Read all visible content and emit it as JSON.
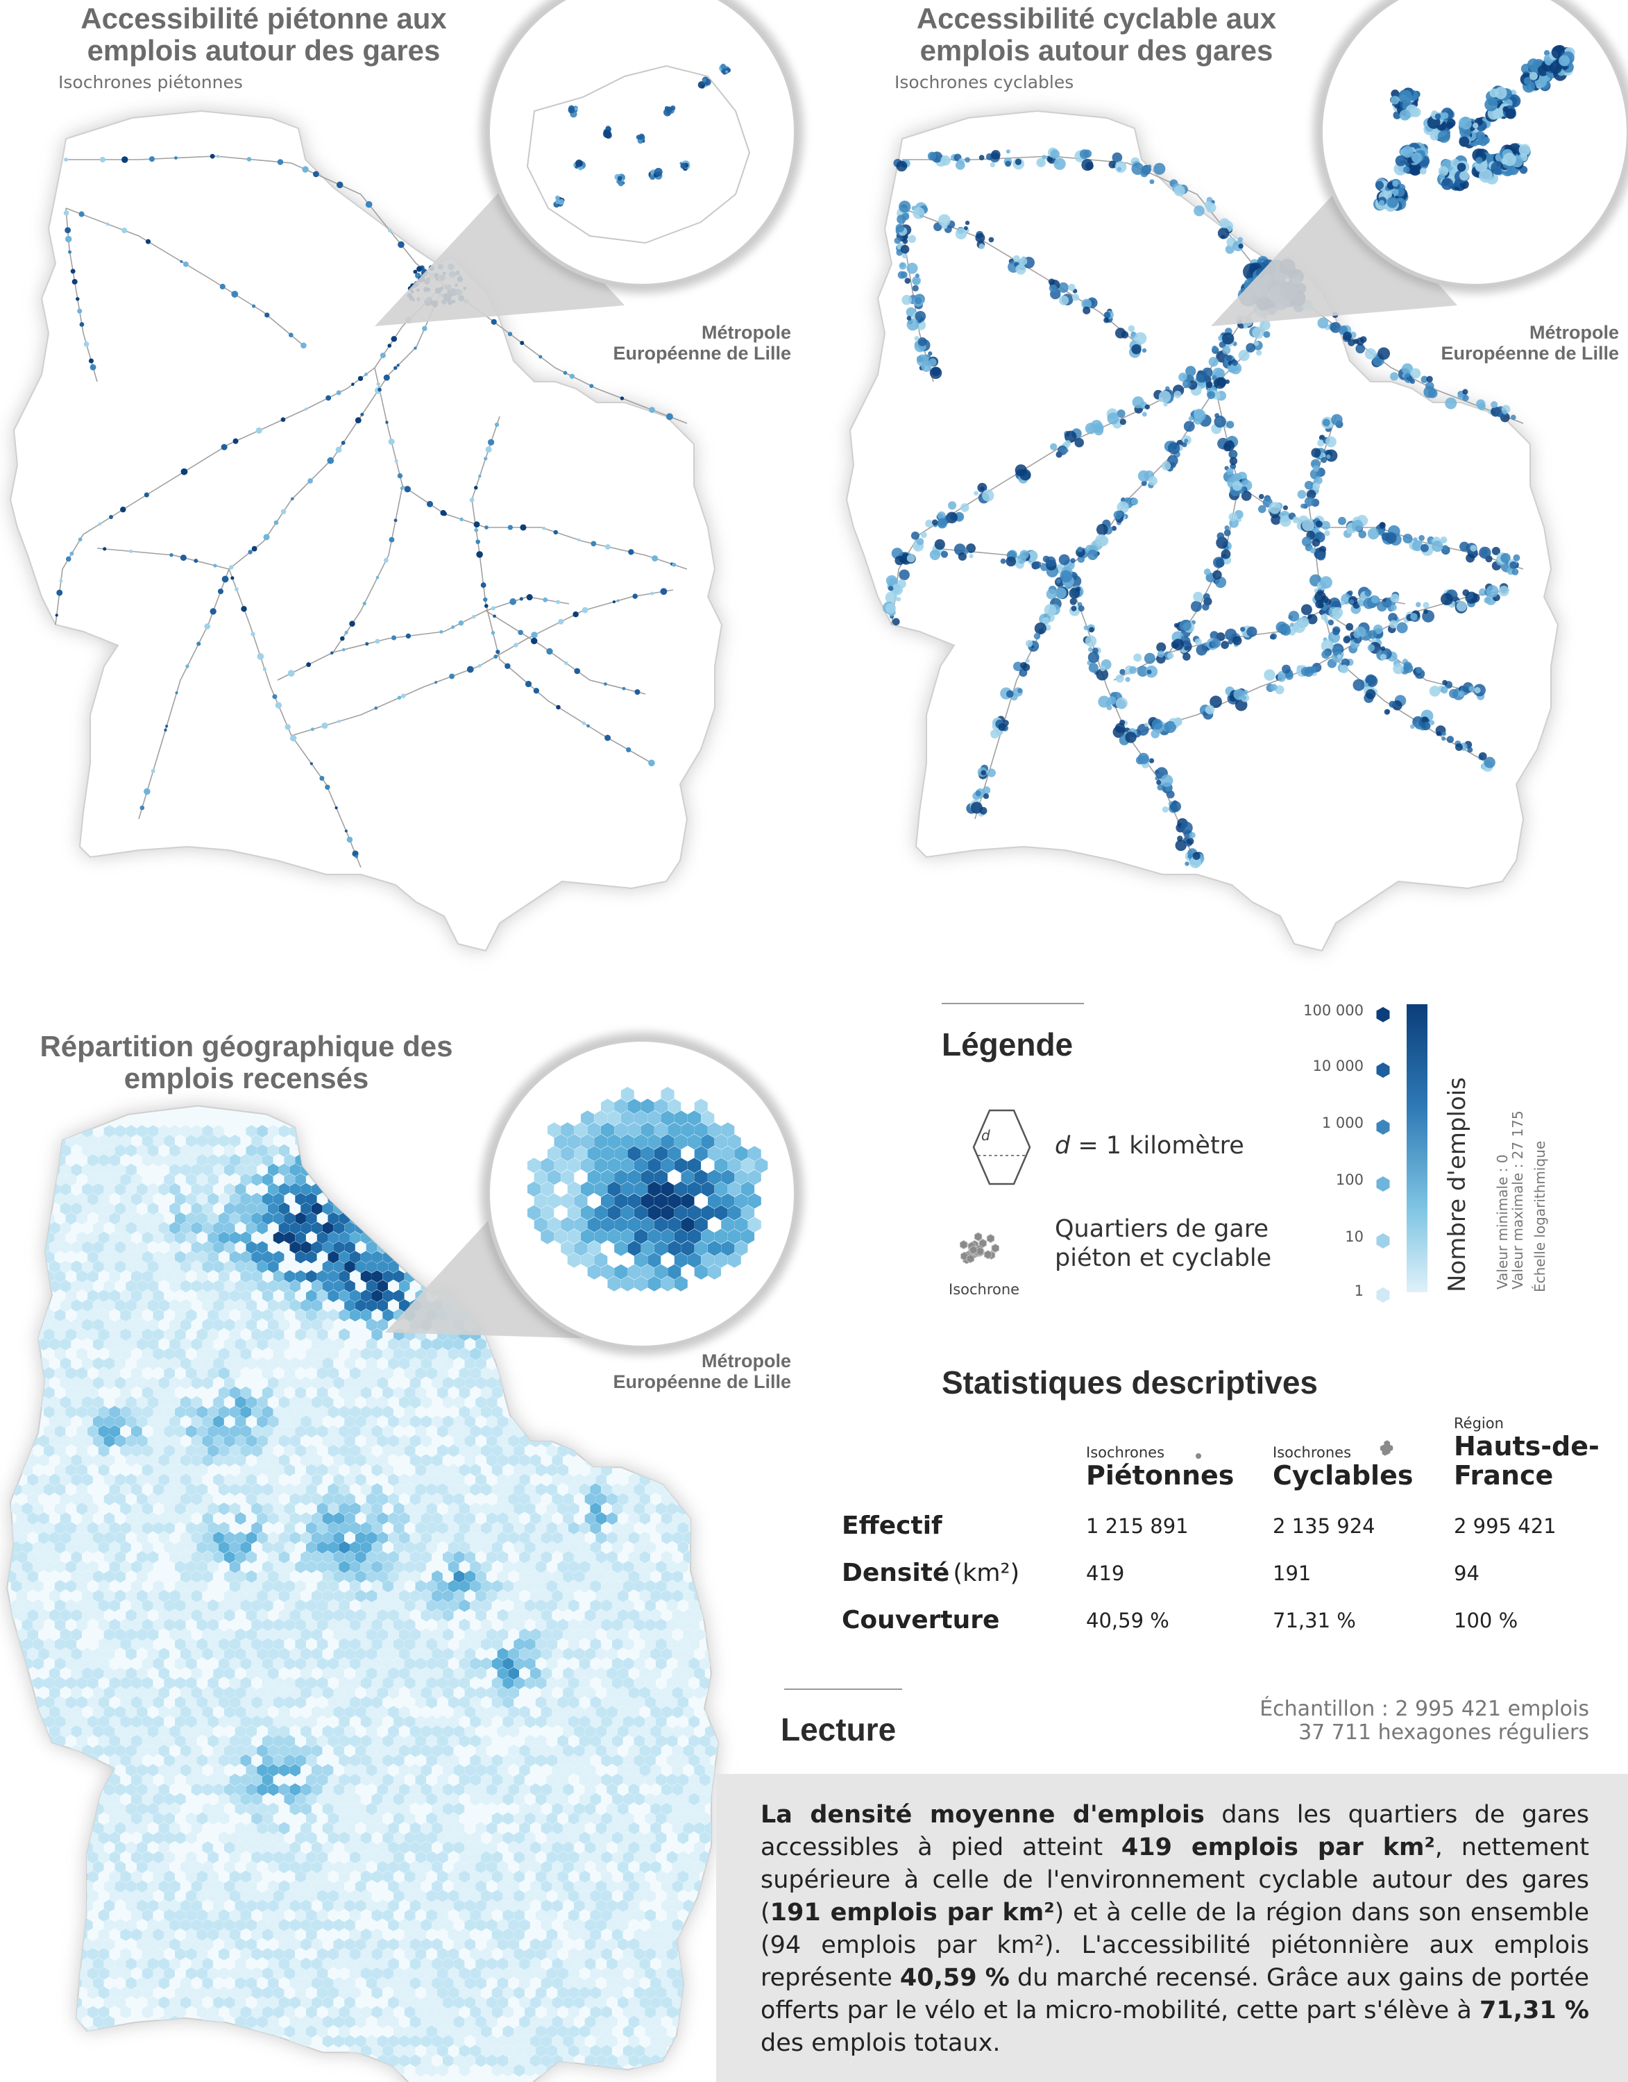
{
  "colors": {
    "title_gray": "#6b6b6b",
    "blue_dark": "#0b3e7a",
    "blue_mid": "#3c86bd",
    "blue_light": "#bfe3f1",
    "lecture_bg": "#e6e6e6"
  },
  "panels": {
    "walk": {
      "title_line1": "Accessibilité piétonne aux",
      "title_line2": "emplois autour des gares",
      "subtitle": "Isochrones piétonnes",
      "inset_label_line1": "Métropole",
      "inset_label_line2": "Européenne de Lille"
    },
    "bike": {
      "title_line1": "Accessibilité cyclable aux",
      "title_line2": "emplois autour des gares",
      "subtitle": "Isochrones cyclables",
      "inset_label_line1": "Métropole",
      "inset_label_line2": "Européenne de Lille"
    },
    "jobs": {
      "title_line1": "Répartition géographique des",
      "title_line2": "emplois recensés",
      "inset_label_line1": "Métropole",
      "inset_label_line2": "Européenne de Lille"
    }
  },
  "legend": {
    "title": "Légende",
    "hex_letter": "d",
    "hex_text": "= 1 kilomètre",
    "isochrone_line1": "Quartiers de gare",
    "isochrone_line2": "piéton et cyclable",
    "isochrone_caption": "Isochrone",
    "scale_labels": [
      "100 000",
      "10 000",
      "1 000",
      "100",
      "10",
      "1"
    ],
    "scale_title": "Nombre d'emplois",
    "min_value": "Valeur minimale : 0",
    "max_value": "Valeur maximale : 27 175",
    "log_scale": "Échelle logarithmique",
    "scale_type": "log"
  },
  "stats": {
    "title": "Statistiques descriptives",
    "columns": [
      {
        "small": "Isochrones",
        "big": "Piétonnes",
        "icon": "dot-icon"
      },
      {
        "small": "Isochrones",
        "big": "Cyclables",
        "icon": "blob-icon"
      },
      {
        "small": "Région",
        "big_line1": "Hauts-de-",
        "big_line2": "France"
      }
    ],
    "rows": [
      {
        "label": "Effectif",
        "unit": "",
        "values": [
          "1 215 891",
          "2 135 924",
          "2 995 421"
        ]
      },
      {
        "label": "Densité",
        "unit": "(km²)",
        "values": [
          "419",
          "191",
          "94"
        ]
      },
      {
        "label": "Couverture",
        "unit": "",
        "values": [
          "40,59 %",
          "71,31 %",
          "100 %"
        ]
      }
    ]
  },
  "lecture": {
    "title": "Lecture",
    "sample_line1": "Échantillon : 2 995 421 emplois",
    "sample_line2": "37 711 hexagones réguliers",
    "p1_b1": "La densité moyenne d'emplois",
    "p1_t1": " dans les quartiers de gares accessibles à pied atteint ",
    "p1_b2": "419 emplois par km²",
    "p1_t2": ", nettement supérieure à celle de l'environnement cyclable autour des gares (",
    "p1_b3": "191 emplois par km²",
    "p1_t3": ") et à celle de la région dans son ensemble (94 emplois par km²). L'accessibilité piétonnière aux emplois représente ",
    "p1_b4": "40,59 %",
    "p1_t4": " du marché recensé. Grâce aux gains de portée offerts par le vélo et la micro-mobilité, cette part s'élève à ",
    "p1_b5": "71,31 %",
    "p1_t5": " des emplois totaux."
  }
}
